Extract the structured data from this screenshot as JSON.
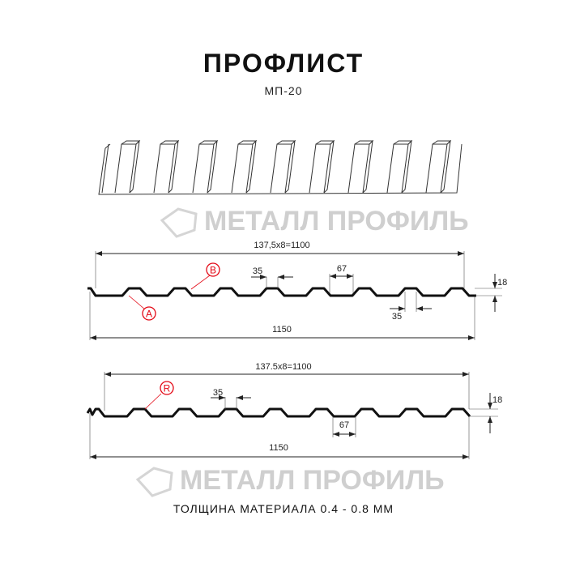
{
  "header": {
    "title": "ПРОФЛИСТ",
    "subtitle": "МП-20"
  },
  "watermark": {
    "text": "МЕТАЛЛ ПРОФИЛЬ"
  },
  "profile_1": {
    "span_label": "137,5x8=1100",
    "total_label": "1150",
    "crest_width": "35",
    "rib_label": "67",
    "valley_width": "35",
    "height": "18",
    "marker_a": "A",
    "marker_b": "B"
  },
  "profile_2": {
    "span_label": "137.5x8=1100",
    "total_label": "1150",
    "crest_width": "35",
    "rib_label": "67",
    "height": "18",
    "marker_r": "R"
  },
  "footer": {
    "thickness": "ТОЛЩИНА МАТЕРИАЛА 0.4 - 0.8 ММ"
  },
  "colors": {
    "line": "#111111",
    "marker": "#e30613",
    "watermark": "#cfcfcf"
  }
}
